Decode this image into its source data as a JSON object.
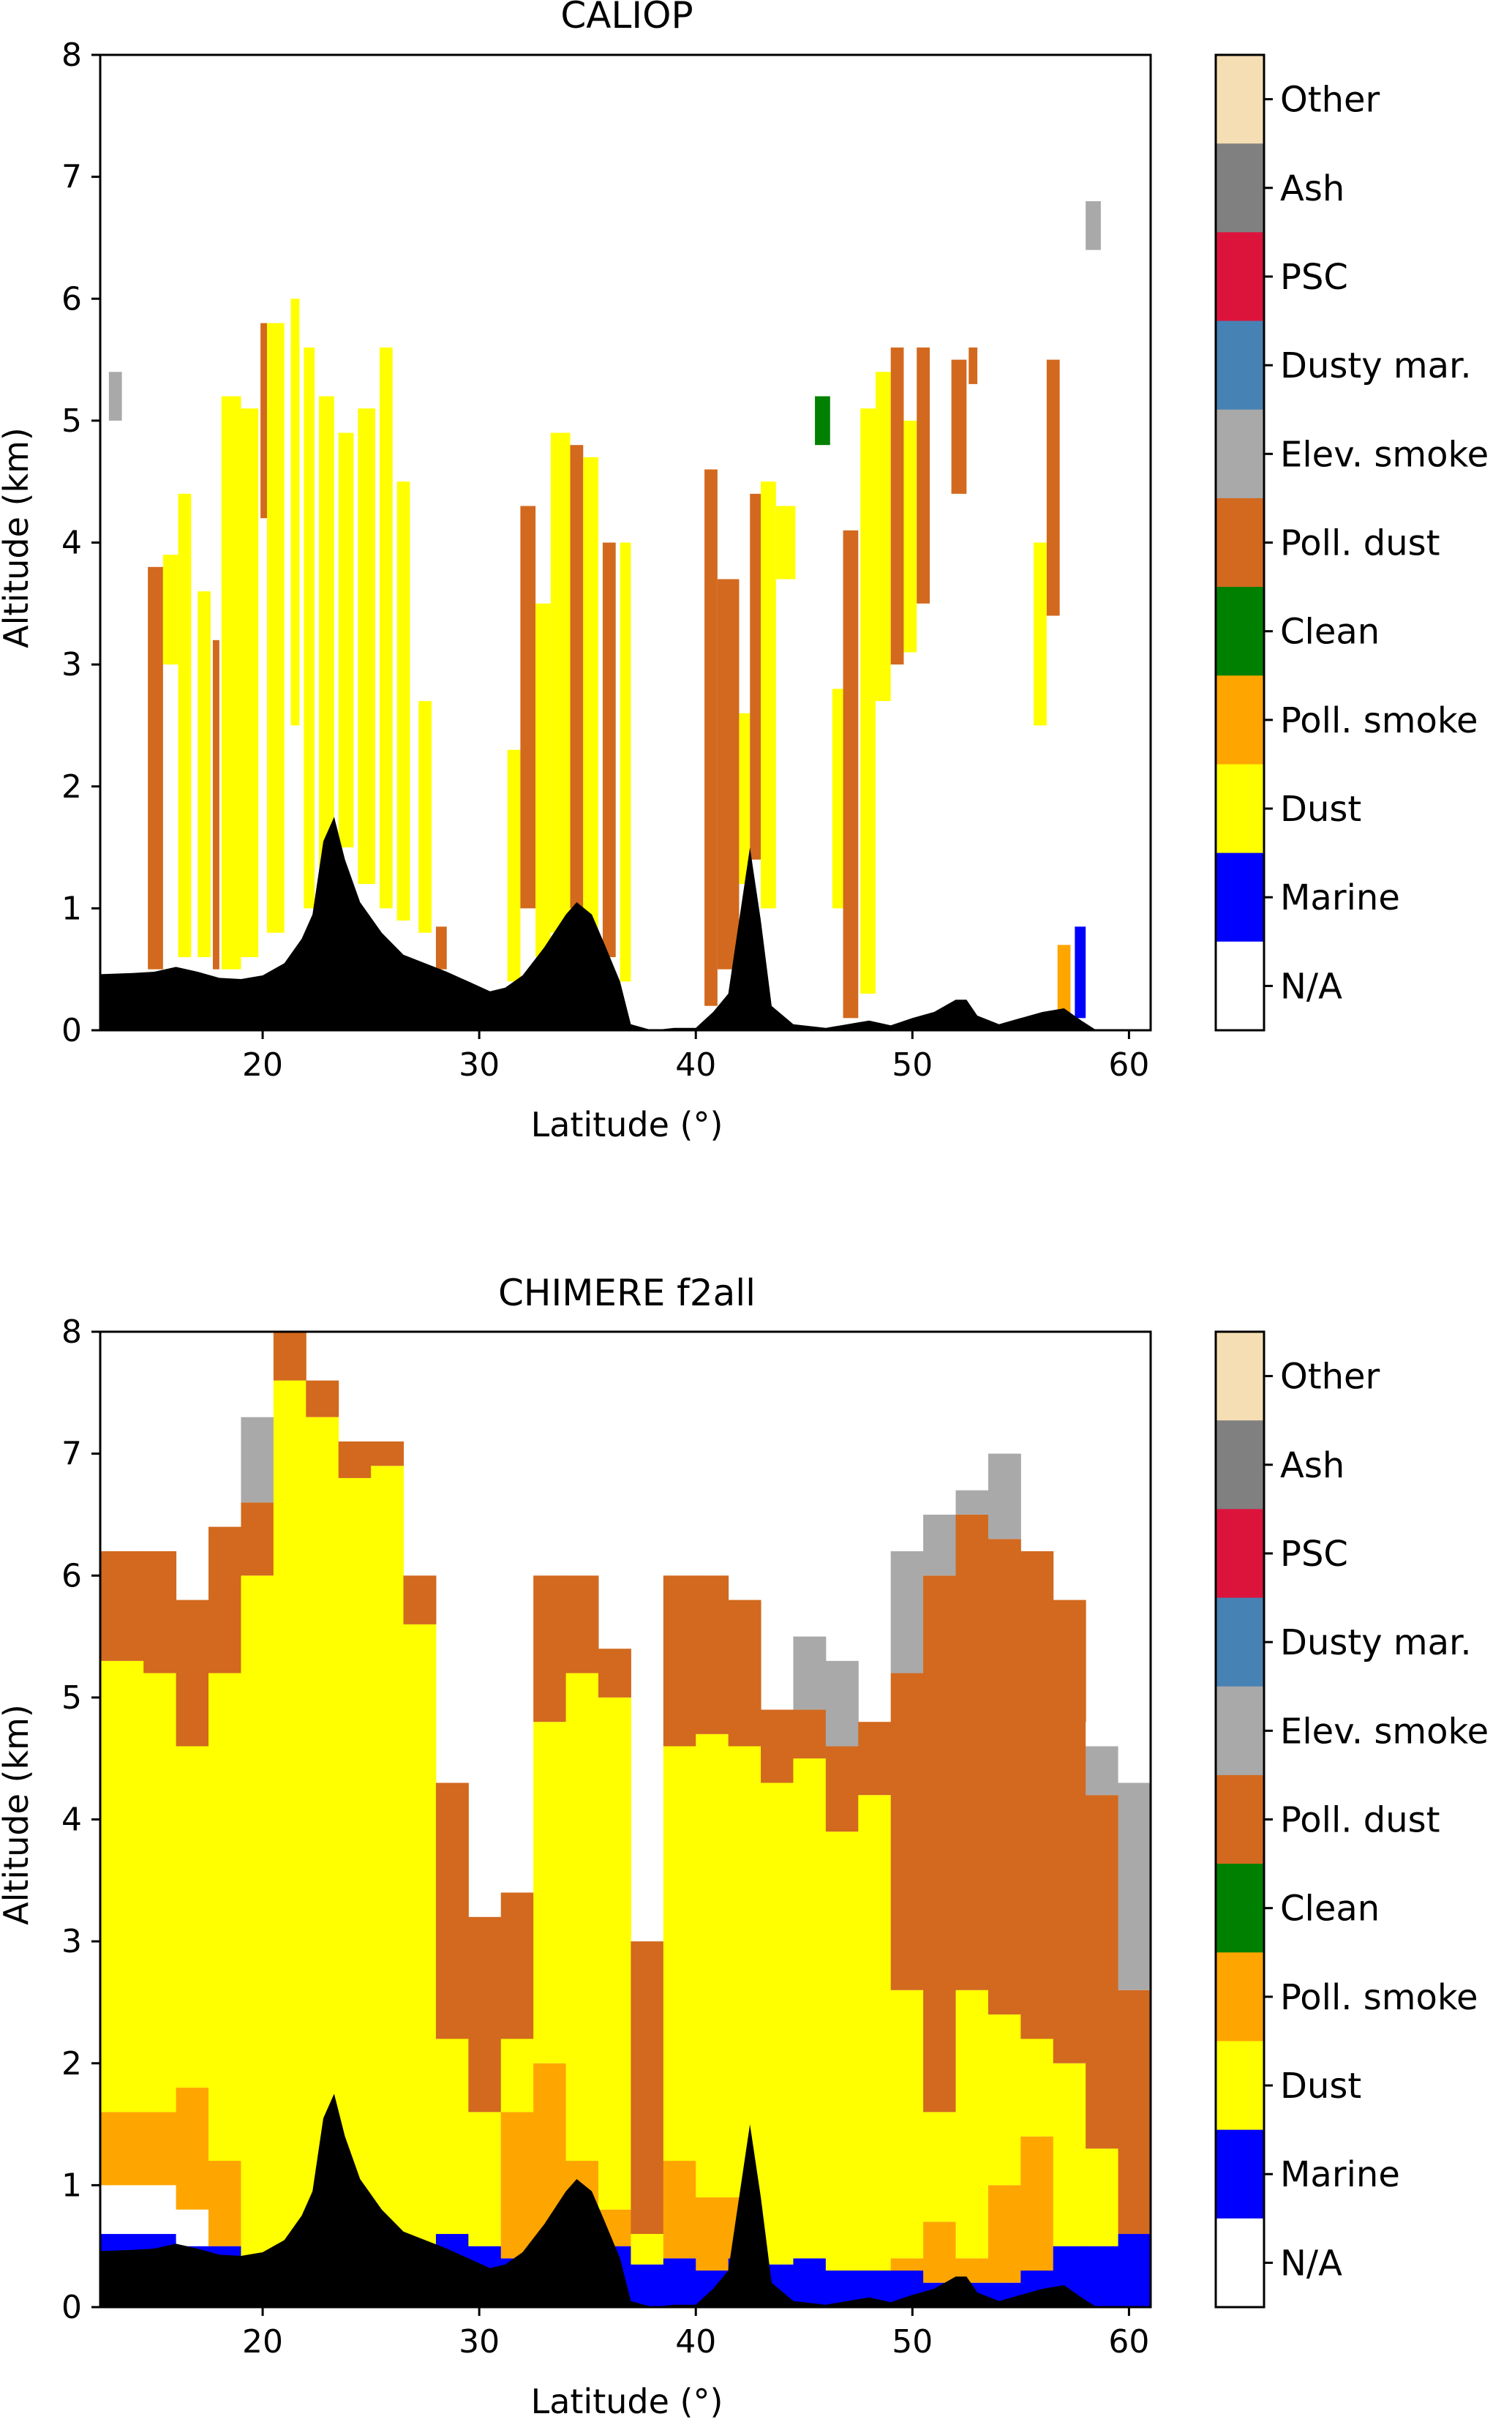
{
  "chart_data": [
    {
      "type": "heatmap",
      "title": "CALIOP",
      "xlabel": "Latitude (°)",
      "ylabel": "Altitude (km)",
      "xlim": [
        12.5,
        61
      ],
      "ylim": [
        0,
        8
      ],
      "xticks": [
        20,
        30,
        40,
        50,
        60
      ],
      "yticks": [
        0,
        1,
        2,
        3,
        4,
        5,
        6,
        7,
        8
      ],
      "grid": false,
      "colorbar": [
        "N/A",
        "Marine",
        "Dust",
        "Poll. smoke",
        "Clean",
        "Poll. dust",
        "Elev. smoke",
        "Dusty mar.",
        "PSC",
        "Ash",
        "Other"
      ],
      "layers": [
        {
          "x0": 14.7,
          "x1": 15.4,
          "y0": 0.5,
          "y1": 3.8,
          "class": "Poll. dust"
        },
        {
          "x0": 15.4,
          "x1": 16.1,
          "y0": 3.0,
          "y1": 3.9,
          "class": "Dust"
        },
        {
          "x0": 16.1,
          "x1": 16.7,
          "y0": 0.6,
          "y1": 4.4,
          "class": "Dust"
        },
        {
          "x0": 17.0,
          "x1": 17.6,
          "y0": 0.6,
          "y1": 3.6,
          "class": "Dust"
        },
        {
          "x0": 17.7,
          "x1": 18.0,
          "y0": 0.5,
          "y1": 3.2,
          "class": "Poll. dust"
        },
        {
          "x0": 18.1,
          "x1": 19.0,
          "y0": 0.5,
          "y1": 5.2,
          "class": "Dust"
        },
        {
          "x0": 19.0,
          "x1": 19.8,
          "y0": 0.6,
          "y1": 5.1,
          "class": "Dust"
        },
        {
          "x0": 19.9,
          "x1": 20.2,
          "y0": 4.2,
          "y1": 5.8,
          "class": "Poll. dust"
        },
        {
          "x0": 20.2,
          "x1": 21.0,
          "y0": 0.8,
          "y1": 5.8,
          "class": "Dust"
        },
        {
          "x0": 21.3,
          "x1": 21.7,
          "y0": 2.5,
          "y1": 6.0,
          "class": "Dust"
        },
        {
          "x0": 21.9,
          "x1": 22.4,
          "y0": 1.0,
          "y1": 5.6,
          "class": "Dust"
        },
        {
          "x0": 22.6,
          "x1": 23.3,
          "y0": 1.0,
          "y1": 5.2,
          "class": "Dust"
        },
        {
          "x0": 23.5,
          "x1": 24.2,
          "y0": 1.5,
          "y1": 4.9,
          "class": "Dust"
        },
        {
          "x0": 24.4,
          "x1": 25.2,
          "y0": 1.2,
          "y1": 5.1,
          "class": "Dust"
        },
        {
          "x0": 25.4,
          "x1": 26.0,
          "y0": 1.0,
          "y1": 5.6,
          "class": "Dust"
        },
        {
          "x0": 26.2,
          "x1": 26.8,
          "y0": 0.9,
          "y1": 4.5,
          "class": "Dust"
        },
        {
          "x0": 27.2,
          "x1": 27.8,
          "y0": 0.8,
          "y1": 2.7,
          "class": "Dust"
        },
        {
          "x0": 28.0,
          "x1": 28.5,
          "y0": 0.5,
          "y1": 0.85,
          "class": "Poll. dust"
        },
        {
          "x0": 31.3,
          "x1": 31.9,
          "y0": 0.4,
          "y1": 2.3,
          "class": "Dust"
        },
        {
          "x0": 31.9,
          "x1": 32.6,
          "y0": 1.0,
          "y1": 4.3,
          "class": "Poll. dust"
        },
        {
          "x0": 32.6,
          "x1": 33.3,
          "y0": 0.6,
          "y1": 3.5,
          "class": "Dust"
        },
        {
          "x0": 33.3,
          "x1": 34.2,
          "y0": 0.8,
          "y1": 4.9,
          "class": "Dust"
        },
        {
          "x0": 34.2,
          "x1": 34.8,
          "y0": 1.0,
          "y1": 4.8,
          "class": "Poll. dust"
        },
        {
          "x0": 34.8,
          "x1": 35.5,
          "y0": 0.8,
          "y1": 4.7,
          "class": "Dust"
        },
        {
          "x0": 35.7,
          "x1": 36.3,
          "y0": 0.6,
          "y1": 4.0,
          "class": "Poll. dust"
        },
        {
          "x0": 36.5,
          "x1": 37.0,
          "y0": 0.4,
          "y1": 4.0,
          "class": "Dust"
        },
        {
          "x0": 40.4,
          "x1": 41.0,
          "y0": 0.2,
          "y1": 4.6,
          "class": "Poll. dust"
        },
        {
          "x0": 41.0,
          "x1": 42.0,
          "y0": 0.5,
          "y1": 3.7,
          "class": "Poll. dust"
        },
        {
          "x0": 42.0,
          "x1": 42.5,
          "y0": 1.2,
          "y1": 2.6,
          "class": "Dust"
        },
        {
          "x0": 42.5,
          "x1": 43.0,
          "y0": 1.4,
          "y1": 4.4,
          "class": "Poll. dust"
        },
        {
          "x0": 43.0,
          "x1": 43.7,
          "y0": 1.0,
          "y1": 4.5,
          "class": "Dust"
        },
        {
          "x0": 43.7,
          "x1": 44.6,
          "y0": 3.7,
          "y1": 4.3,
          "class": "Dust"
        },
        {
          "x0": 45.5,
          "x1": 46.2,
          "y0": 4.8,
          "y1": 5.2,
          "class": "Clean"
        },
        {
          "x0": 46.3,
          "x1": 46.8,
          "y0": 1.0,
          "y1": 2.8,
          "class": "Dust"
        },
        {
          "x0": 46.8,
          "x1": 47.5,
          "y0": 0.1,
          "y1": 4.1,
          "class": "Poll. dust"
        },
        {
          "x0": 47.6,
          "x1": 48.3,
          "y0": 0.3,
          "y1": 5.1,
          "class": "Dust"
        },
        {
          "x0": 48.3,
          "x1": 49.0,
          "y0": 2.7,
          "y1": 5.4,
          "class": "Dust"
        },
        {
          "x0": 49.0,
          "x1": 49.6,
          "y0": 3.0,
          "y1": 5.6,
          "class": "Poll. dust"
        },
        {
          "x0": 49.6,
          "x1": 50.2,
          "y0": 3.1,
          "y1": 5.0,
          "class": "Dust"
        },
        {
          "x0": 50.2,
          "x1": 50.8,
          "y0": 3.5,
          "y1": 5.6,
          "class": "Poll. dust"
        },
        {
          "x0": 51.8,
          "x1": 52.5,
          "y0": 4.4,
          "y1": 5.5,
          "class": "Poll. dust"
        },
        {
          "x0": 52.6,
          "x1": 53.0,
          "y0": 5.3,
          "y1": 5.6,
          "class": "Poll. dust"
        },
        {
          "x0": 55.6,
          "x1": 56.2,
          "y0": 2.5,
          "y1": 4.0,
          "class": "Dust"
        },
        {
          "x0": 56.2,
          "x1": 56.8,
          "y0": 3.4,
          "y1": 5.5,
          "class": "Poll. dust"
        },
        {
          "x0": 56.7,
          "x1": 57.3,
          "y0": 0.1,
          "y1": 0.7,
          "class": "Poll. smoke"
        },
        {
          "x0": 57.5,
          "x1": 58.0,
          "y0": 0.1,
          "y1": 0.85,
          "class": "Marine"
        },
        {
          "x0": 12.9,
          "x1": 13.5,
          "y0": 5.0,
          "y1": 5.4,
          "class": "Elev. smoke"
        },
        {
          "x0": 58.0,
          "x1": 58.7,
          "y0": 6.4,
          "y1": 6.8,
          "class": "Elev. smoke"
        }
      ],
      "terrain": [
        [
          12.5,
          0.46
        ],
        [
          14,
          0.47
        ],
        [
          15,
          0.48
        ],
        [
          16,
          0.52
        ],
        [
          17,
          0.48
        ],
        [
          18,
          0.43
        ],
        [
          19,
          0.42
        ],
        [
          20,
          0.45
        ],
        [
          21,
          0.55
        ],
        [
          21.8,
          0.75
        ],
        [
          22.3,
          0.95
        ],
        [
          22.8,
          1.55
        ],
        [
          23.3,
          1.75
        ],
        [
          23.8,
          1.4
        ],
        [
          24.5,
          1.05
        ],
        [
          25.5,
          0.8
        ],
        [
          26.5,
          0.62
        ],
        [
          27.5,
          0.55
        ],
        [
          28.5,
          0.48
        ],
        [
          29.5,
          0.4
        ],
        [
          30.5,
          0.32
        ],
        [
          31.2,
          0.35
        ],
        [
          32,
          0.45
        ],
        [
          33,
          0.68
        ],
        [
          34,
          0.95
        ],
        [
          34.5,
          1.05
        ],
        [
          35.2,
          0.95
        ],
        [
          35.8,
          0.7
        ],
        [
          36.5,
          0.4
        ],
        [
          37,
          0.05
        ],
        [
          38,
          0
        ],
        [
          39,
          0.02
        ],
        [
          40,
          0.02
        ],
        [
          40.8,
          0.15
        ],
        [
          41.5,
          0.3
        ],
        [
          42,
          0.9
        ],
        [
          42.5,
          1.5
        ],
        [
          43,
          0.9
        ],
        [
          43.5,
          0.2
        ],
        [
          44.5,
          0.05
        ],
        [
          46,
          0.02
        ],
        [
          47,
          0.05
        ],
        [
          48,
          0.08
        ],
        [
          49,
          0.04
        ],
        [
          50,
          0.1
        ],
        [
          51,
          0.15
        ],
        [
          52,
          0.25
        ],
        [
          52.5,
          0.25
        ],
        [
          53,
          0.12
        ],
        [
          54,
          0.05
        ],
        [
          55,
          0.1
        ],
        [
          56,
          0.15
        ],
        [
          57,
          0.18
        ],
        [
          57.8,
          0.08
        ],
        [
          58.5,
          0
        ],
        [
          61,
          0
        ]
      ]
    },
    {
      "type": "heatmap",
      "title": "CHIMERE f2all",
      "xlabel": "Latitude (°)",
      "ylabel": "Altitude (km)",
      "xlim": [
        12.5,
        61
      ],
      "ylim": [
        0,
        8
      ],
      "xticks": [
        20,
        30,
        40,
        50,
        60
      ],
      "yticks": [
        0,
        1,
        2,
        3,
        4,
        5,
        6,
        7,
        8
      ],
      "grid": false,
      "colorbar": [
        "N/A",
        "Marine",
        "Dust",
        "Poll. smoke",
        "Clean",
        "Poll. dust",
        "Elev. smoke",
        "Dusty mar.",
        "PSC",
        "Ash",
        "Other"
      ],
      "columns": [
        [
          12.5,
          0.6,
          1.0,
          1.6,
          5.3,
          6.2,
          6.2,
          6.2
        ],
        [
          14.5,
          0.6,
          1.0,
          1.6,
          5.2,
          6.2,
          6.2,
          6.2
        ],
        [
          16.0,
          0.5,
          0.8,
          1.8,
          4.6,
          5.8,
          5.8,
          5.8
        ],
        [
          17.5,
          0.5,
          0.5,
          1.2,
          5.2,
          6.4,
          6.4,
          6.4
        ],
        [
          19.0,
          0.4,
          0.4,
          0.4,
          6.0,
          6.6,
          7.3,
          8.0
        ],
        [
          20.5,
          0.5,
          0.5,
          0.5,
          7.6,
          8.0,
          8.0,
          8.0
        ],
        [
          22.0,
          0.6,
          0.6,
          0.6,
          7.3,
          7.6,
          7.6,
          7.6
        ],
        [
          23.5,
          0.5,
          0.5,
          0.5,
          6.8,
          7.1,
          7.1,
          7.1
        ],
        [
          25.0,
          0.5,
          0.5,
          0.5,
          6.9,
          7.1,
          7.1,
          7.1
        ],
        [
          26.5,
          0.5,
          0.5,
          0.5,
          5.6,
          6.0,
          6.0,
          6.0
        ],
        [
          28.0,
          0.6,
          0.6,
          0.6,
          2.2,
          4.3,
          4.3,
          4.3
        ],
        [
          29.5,
          0.5,
          0.5,
          0.5,
          1.6,
          3.2,
          3.2,
          3.2
        ],
        [
          31.0,
          0.4,
          0.4,
          1.6,
          2.2,
          3.4,
          3.4,
          3.4
        ],
        [
          32.5,
          0.5,
          0.5,
          2.0,
          4.8,
          6.0,
          6.0,
          6.0
        ],
        [
          34.0,
          0.5,
          0.5,
          1.2,
          5.2,
          6.0,
          6.0,
          6.0
        ],
        [
          35.5,
          0.5,
          0.5,
          0.8,
          5.0,
          5.4,
          5.4,
          5.4
        ],
        [
          37.0,
          0.35,
          0.35,
          0.35,
          0.6,
          3.0,
          3.0,
          3.0
        ],
        [
          38.5,
          0.4,
          0.4,
          1.2,
          4.6,
          6.0,
          6.0,
          6.0
        ],
        [
          40.0,
          0.3,
          0.3,
          0.9,
          4.7,
          6.0,
          6.0,
          6.0
        ],
        [
          41.5,
          0.4,
          0.4,
          0.9,
          4.6,
          5.8,
          5.8,
          5.8
        ],
        [
          43.0,
          0.35,
          0.35,
          0.35,
          4.3,
          4.9,
          4.9,
          4.9
        ],
        [
          44.5,
          0.4,
          0.4,
          0.4,
          4.5,
          4.9,
          5.5,
          5.5
        ],
        [
          46.0,
          0.3,
          0.3,
          0.3,
          3.9,
          4.6,
          5.3,
          5.3
        ],
        [
          47.5,
          0.3,
          0.3,
          0.3,
          4.2,
          4.8,
          4.8,
          4.8
        ],
        [
          49.0,
          0.3,
          0.3,
          0.4,
          2.6,
          5.2,
          6.2,
          7.0
        ],
        [
          50.5,
          0.2,
          0.2,
          0.7,
          1.6,
          6.0,
          6.5,
          7.7
        ],
        [
          52.0,
          0.2,
          0.2,
          0.4,
          2.6,
          6.5,
          6.7,
          7.4
        ],
        [
          53.5,
          0.2,
          0.2,
          1.0,
          2.4,
          6.3,
          7.0,
          7.0
        ],
        [
          55.0,
          0.3,
          0.3,
          1.4,
          2.2,
          6.2,
          6.2,
          6.2
        ],
        [
          56.5,
          0.5,
          0.5,
          0.5,
          2.0,
          5.8,
          5.8,
          5.8
        ],
        [
          58.0,
          0.5,
          0.5,
          0.5,
          1.3,
          4.2,
          4.6,
          4.8
        ],
        [
          59.5,
          0.6,
          0.6,
          0.6,
          0.6,
          2.6,
          4.3,
          4.6
        ]
      ],
      "column_classes": [
        "Marine",
        "N/A",
        "Poll. smoke",
        "Dust",
        "Poll. dust",
        "Elev. smoke",
        "N/A"
      ],
      "terrain": [
        [
          12.5,
          0.46
        ],
        [
          14,
          0.47
        ],
        [
          15,
          0.48
        ],
        [
          16,
          0.52
        ],
        [
          17,
          0.48
        ],
        [
          18,
          0.43
        ],
        [
          19,
          0.42
        ],
        [
          20,
          0.45
        ],
        [
          21,
          0.55
        ],
        [
          21.8,
          0.75
        ],
        [
          22.3,
          0.95
        ],
        [
          22.8,
          1.55
        ],
        [
          23.3,
          1.75
        ],
        [
          23.8,
          1.4
        ],
        [
          24.5,
          1.05
        ],
        [
          25.5,
          0.8
        ],
        [
          26.5,
          0.62
        ],
        [
          27.5,
          0.55
        ],
        [
          28.5,
          0.48
        ],
        [
          29.5,
          0.4
        ],
        [
          30.5,
          0.32
        ],
        [
          31.2,
          0.35
        ],
        [
          32,
          0.45
        ],
        [
          33,
          0.68
        ],
        [
          34,
          0.95
        ],
        [
          34.5,
          1.05
        ],
        [
          35.2,
          0.95
        ],
        [
          35.8,
          0.7
        ],
        [
          36.5,
          0.4
        ],
        [
          37,
          0.05
        ],
        [
          38,
          0
        ],
        [
          39,
          0.02
        ],
        [
          40,
          0.02
        ],
        [
          40.8,
          0.15
        ],
        [
          41.5,
          0.3
        ],
        [
          42,
          0.9
        ],
        [
          42.5,
          1.5
        ],
        [
          43,
          0.9
        ],
        [
          43.5,
          0.2
        ],
        [
          44.5,
          0.05
        ],
        [
          46,
          0.02
        ],
        [
          47,
          0.05
        ],
        [
          48,
          0.08
        ],
        [
          49,
          0.04
        ],
        [
          50,
          0.1
        ],
        [
          51,
          0.15
        ],
        [
          52,
          0.25
        ],
        [
          52.5,
          0.25
        ],
        [
          53,
          0.12
        ],
        [
          54,
          0.05
        ],
        [
          55,
          0.1
        ],
        [
          56,
          0.15
        ],
        [
          57,
          0.18
        ],
        [
          57.8,
          0.08
        ],
        [
          58.5,
          0
        ],
        [
          61,
          0
        ]
      ]
    }
  ],
  "legend": {
    "items": [
      {
        "label": "Other",
        "color": "#f5deb3"
      },
      {
        "label": "Ash",
        "color": "#808080"
      },
      {
        "label": "PSC",
        "color": "#dc143c"
      },
      {
        "label": "Dusty mar.",
        "color": "#4682b4"
      },
      {
        "label": "Elev. smoke",
        "color": "#a9a9a9"
      },
      {
        "label": "Poll. dust",
        "color": "#d2691e"
      },
      {
        "label": "Clean",
        "color": "#008000"
      },
      {
        "label": "Poll. smoke",
        "color": "#ffa500"
      },
      {
        "label": "Dust",
        "color": "#ffff00"
      },
      {
        "label": "Marine",
        "color": "#0000ff"
      },
      {
        "label": "N/A",
        "color": "#ffffff"
      }
    ]
  },
  "terrain_color": "#000000"
}
